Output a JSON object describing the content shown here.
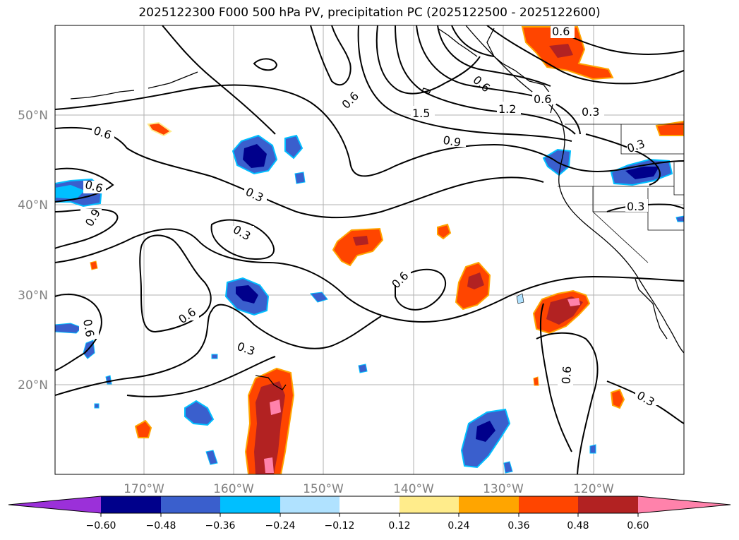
{
  "title": "2025122300 F000 500 hPa PV, precipitation PC (2025122500 - 2025122600)",
  "map": {
    "lat_labels": [
      "50°N",
      "40°N",
      "30°N",
      "20°N"
    ],
    "lon_labels": [
      "170°W",
      "160°W",
      "150°W",
      "140°W",
      "130°W",
      "120°W"
    ]
  },
  "contour_labels": [
    "0.6",
    "0.6",
    "0.9",
    "0.6",
    "0.3",
    "0.3",
    "0.6",
    "0.3",
    "0.6",
    "0.6",
    "1.5",
    "0.9",
    "1.2",
    "0.6",
    "0.3",
    "0.3",
    "0.3",
    "0.6",
    "0.6",
    "0.3",
    "0.6"
  ],
  "colorbar": {
    "ticks": [
      "−0.60",
      "−0.48",
      "−0.36",
      "−0.24",
      "−0.12",
      "0.12",
      "0.24",
      "0.36",
      "0.48",
      "0.60"
    ],
    "colors": {
      "min_ext": "#9b30d9",
      "n060": "#00008b",
      "n048": "#3a5fcd",
      "n036": "#00bfff",
      "n024": "#b0e2ff",
      "n012": "#ffffff",
      "p012": "#ffec8b",
      "p024": "#ffa500",
      "p036": "#ff4500",
      "p048": "#b22222",
      "max_ext": "#ff82ab"
    }
  }
}
